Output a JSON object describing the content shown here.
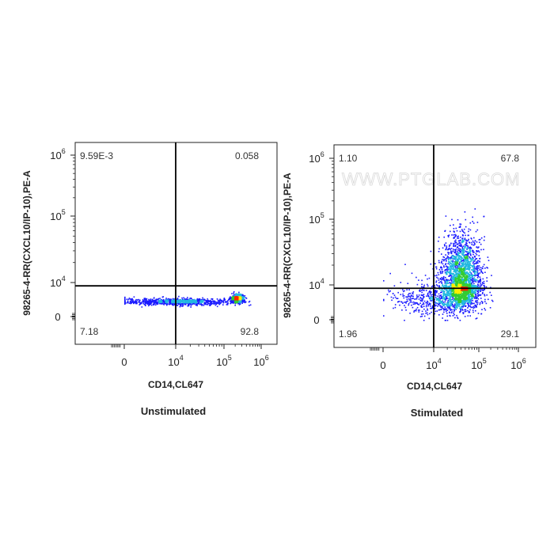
{
  "watermark": "WWW.PTGLAB.COM",
  "chart_data": [
    {
      "type": "scatter",
      "subtitle": "Unstimulated",
      "xlabel": "CD14,CL647",
      "ylabel": "98265-4-RR(CXCL10/IP-10),PE-A",
      "scale": "biexponential (log above ~10^3)",
      "x_ticks": [
        {
          "base": "0",
          "exp": ""
        },
        {
          "base": "10",
          "exp": "4"
        },
        {
          "base": "10",
          "exp": "5"
        },
        {
          "base": "10",
          "exp": "6"
        }
      ],
      "y_ticks": [
        {
          "base": "0",
          "exp": ""
        },
        {
          "base": "10",
          "exp": "4"
        },
        {
          "base": "10",
          "exp": "5"
        },
        {
          "base": "10",
          "exp": "6"
        }
      ],
      "quadrant_gate": {
        "x": 10000,
        "y": 8000
      },
      "quadrants": {
        "upper_left": "9.59E-3",
        "upper_right": "0.058",
        "lower_left": "7.18",
        "lower_right": "92.8"
      },
      "populations": [
        {
          "x_log_center": 4.05,
          "x_log_spread": 0.55,
          "y_log_center": 3.45,
          "y_log_spread": 0.05,
          "count": 900
        },
        {
          "x_log_center": 5.35,
          "x_log_spread": 0.09,
          "y_log_center": 3.55,
          "y_log_spread": 0.06,
          "count": 500
        }
      ],
      "colors": {
        "low": "#1a1aff",
        "mid": "#22b8e0",
        "high": "#33cc33",
        "peak1": "#ffee00",
        "peak2": "#ff2200"
      }
    },
    {
      "type": "scatter",
      "subtitle": "Stimulated",
      "xlabel": "CD14,CL647",
      "ylabel": "98265-4-RR(CXCL10/IP-10),PE-A",
      "scale": "biexponential (log above ~10^3)",
      "x_ticks": [
        {
          "base": "0",
          "exp": ""
        },
        {
          "base": "10",
          "exp": "4"
        },
        {
          "base": "10",
          "exp": "5"
        },
        {
          "base": "10",
          "exp": "6"
        }
      ],
      "y_ticks": [
        {
          "base": "0",
          "exp": ""
        },
        {
          "base": "10",
          "exp": "4"
        },
        {
          "base": "10",
          "exp": "5"
        },
        {
          "base": "10",
          "exp": "6"
        }
      ],
      "quadrant_gate": {
        "x": 10000,
        "y": 8000
      },
      "quadrants": {
        "upper_left": "1.10",
        "upper_right": "67.8",
        "lower_left": "1.96",
        "lower_right": "29.1"
      },
      "populations": [
        {
          "x_log_center": 4.6,
          "x_log_spread": 0.22,
          "y_log_center": 4.05,
          "y_log_spread": 0.35,
          "count": 2600
        },
        {
          "x_log_center": 4.0,
          "x_log_spread": 0.45,
          "y_log_center": 3.6,
          "y_log_spread": 0.25,
          "count": 500
        }
      ],
      "colors": {
        "low": "#1a1aff",
        "mid": "#22b8e0",
        "high": "#33cc33",
        "peak1": "#ffee00",
        "peak2": "#ff2200"
      }
    }
  ]
}
